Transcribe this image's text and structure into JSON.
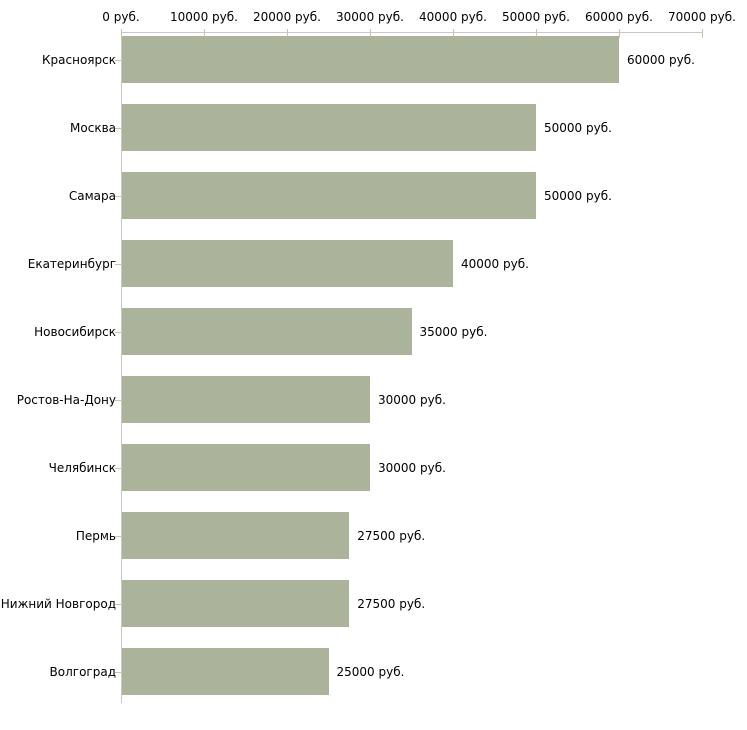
{
  "chart_data": {
    "type": "bar",
    "orientation": "horizontal",
    "title": "",
    "categories": [
      "Красноярск",
      "Москва",
      "Самара",
      "Екатеринбург",
      "Новосибирск",
      "Ростов-На-Дону",
      "Челябинск",
      "Пермь",
      "Нижний Новгород",
      "Волгоград"
    ],
    "values": [
      60000,
      50000,
      50000,
      40000,
      35000,
      30000,
      30000,
      27500,
      27500,
      25000
    ],
    "bar_labels": [
      "60000 руб.",
      "50000 руб.",
      "50000 руб.",
      "40000 руб.",
      "35000 руб.",
      "30000 руб.",
      "30000 руб.",
      "27500 руб.",
      "27500 руб.",
      "25000 руб."
    ],
    "x_axis": {
      "position": "top",
      "min": 0,
      "max": 70000,
      "ticks": [
        0,
        10000,
        20000,
        30000,
        40000,
        50000,
        60000,
        70000
      ],
      "tick_labels": [
        "0 руб.",
        "10000 руб.",
        "20000 руб.",
        "30000 руб.",
        "40000 руб.",
        "50000 руб.",
        "60000 руб.",
        "70000 руб."
      ]
    },
    "grid": false,
    "legend": false,
    "colors": {
      "bar": "#abb49b",
      "axis_line": "#c8c8c8",
      "tick": "#c9c6a0",
      "text": "#000000",
      "background": "#ffffff"
    }
  }
}
